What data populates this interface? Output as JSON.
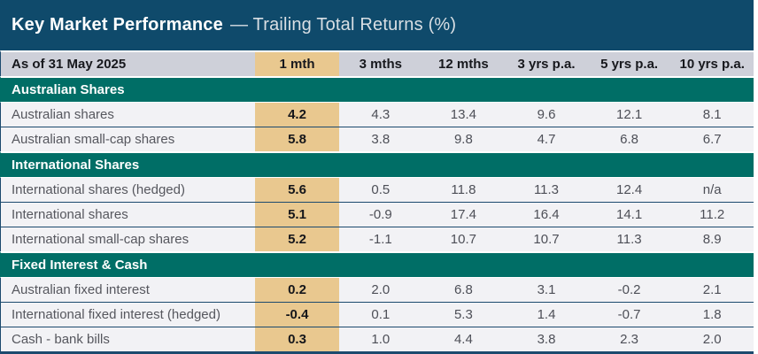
{
  "title": {
    "main": "Key Market Performance",
    "subtitle": "— Trailing Total Returns (%)"
  },
  "colors": {
    "title_bg": "#0f4a6b",
    "section_bg": "#006e66",
    "highlight_col_bg": "#e9c88f",
    "header_row_bg": "#ced0d9",
    "data_row_bg": "#f2f2f5",
    "divider": "#1c4a6e"
  },
  "table": {
    "as_of_label": "As of 31 May 2025",
    "columns": [
      "1 mth",
      "3 mths",
      "12 mths",
      "3 yrs p.a.",
      "5 yrs p.a.",
      "10 yrs p.a."
    ],
    "highlighted_column": "1 mth",
    "sections": [
      {
        "label": "Australian Shares",
        "rows": [
          {
            "label": "Australian shares",
            "values": [
              "4.2",
              "4.3",
              "13.4",
              "9.6",
              "12.1",
              "8.1"
            ]
          },
          {
            "label": "Australian small-cap shares",
            "values": [
              "5.8",
              "3.8",
              "9.8",
              "4.7",
              "6.8",
              "6.7"
            ]
          }
        ]
      },
      {
        "label": "International Shares",
        "rows": [
          {
            "label": "International shares (hedged)",
            "values": [
              "5.6",
              "0.5",
              "11.8",
              "11.3",
              "12.4",
              "n/a"
            ]
          },
          {
            "label": "International shares",
            "values": [
              "5.1",
              "-0.9",
              "17.4",
              "16.4",
              "14.1",
              "11.2"
            ]
          },
          {
            "label": "International small-cap shares",
            "values": [
              "5.2",
              "-1.1",
              "10.7",
              "10.7",
              "11.3",
              "8.9"
            ]
          }
        ]
      },
      {
        "label": "Fixed Interest & Cash",
        "rows": [
          {
            "label": "Australian fixed interest",
            "values": [
              "0.2",
              "2.0",
              "6.8",
              "3.1",
              "-0.2",
              "2.1"
            ]
          },
          {
            "label": "International fixed interest (hedged)",
            "values": [
              "-0.4",
              "0.1",
              "5.3",
              "1.4",
              "-0.7",
              "1.8"
            ]
          },
          {
            "label": "Cash - bank bills",
            "values": [
              "0.3",
              "1.0",
              "4.4",
              "3.8",
              "2.3",
              "2.0"
            ]
          }
        ]
      }
    ]
  }
}
